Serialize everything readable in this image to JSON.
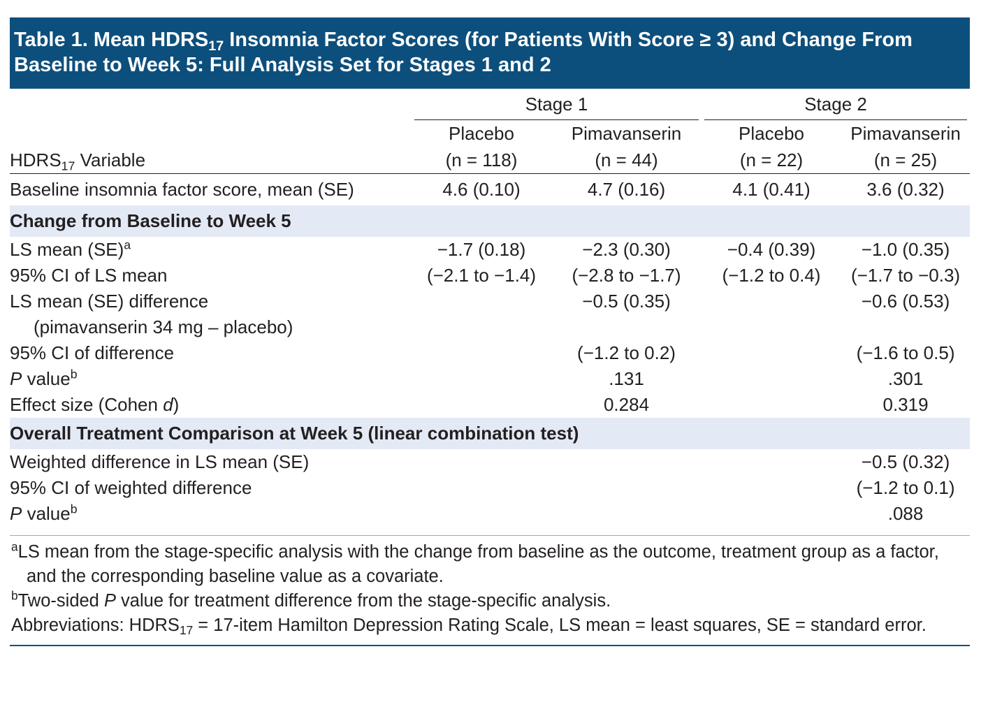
{
  "title": [
    {
      "text": "Table 1. Mean HDRS"
    },
    {
      "text": "17",
      "style": "sub"
    },
    {
      "text": " Insomnia Factor Scores (for Patients With Score ≥ 3) and Change From Baseline to Week 5: Full Analysis Set for Stages 1 and 2"
    }
  ],
  "header": {
    "stages": [
      "Stage 1",
      "Stage 2"
    ],
    "variable": [
      {
        "text": "HDRS"
      },
      {
        "text": "17",
        "style": "sub"
      },
      {
        "text": " Variable"
      }
    ],
    "groups": [
      {
        "name": "Placebo",
        "n": "(n = 118)"
      },
      {
        "name": "Pimavanserin",
        "n": "(n = 44)"
      },
      {
        "name": "Placebo",
        "n": "(n = 22)"
      },
      {
        "name": "Pimavanserin",
        "n": "(n = 25)"
      }
    ]
  },
  "rows": [
    {
      "label": [
        {
          "text": "Baseline insomnia factor score, mean (SE)"
        }
      ],
      "values": [
        "4.6 (0.10)",
        "4.7 (0.16)",
        "4.1 (0.41)",
        "3.6 (0.32)"
      ]
    },
    {
      "section": true,
      "label": [
        {
          "text": "Change from Baseline to Week 5"
        }
      ]
    },
    {
      "label": [
        {
          "text": "LS mean (SE)"
        },
        {
          "text": "a",
          "style": "sup"
        }
      ],
      "values": [
        "−1.7 (0.18)",
        "−2.3 (0.30)",
        "−0.4 (0.39)",
        "−1.0 (0.35)"
      ]
    },
    {
      "label": [
        {
          "text": "95% CI of LS mean"
        }
      ],
      "values": [
        "(−2.1 to −1.4)",
        "(−2.8 to −1.7)",
        "(−1.2 to 0.4)",
        "(−1.7 to −0.3)"
      ]
    },
    {
      "label": [
        {
          "text": "LS mean (SE) difference"
        }
      ],
      "values": [
        null,
        "−0.5 (0.35)",
        null,
        "−0.6 (0.53)"
      ]
    },
    {
      "indent": true,
      "label": [
        {
          "text": "(pimavanserin 34 mg – placebo)"
        }
      ]
    },
    {
      "label": [
        {
          "text": "95% CI of difference"
        }
      ],
      "values": [
        null,
        "(−1.2 to 0.2)",
        null,
        "(−1.6 to 0.5)"
      ]
    },
    {
      "label": [
        {
          "text": "P",
          "style": "italic"
        },
        {
          "text": " value"
        },
        {
          "text": "b",
          "style": "sup"
        }
      ],
      "values": [
        null,
        ".131",
        null,
        ".301"
      ]
    },
    {
      "label": [
        {
          "text": "Effect size (Cohen "
        },
        {
          "text": "d",
          "style": "italic"
        },
        {
          "text": ")"
        }
      ],
      "values": [
        null,
        "0.284",
        null,
        "0.319"
      ]
    },
    {
      "section": true,
      "label": [
        {
          "text": "Overall Treatment Comparison at Week 5 (linear combination test)"
        }
      ]
    },
    {
      "label": [
        {
          "text": "Weighted difference in LS mean (SE)"
        }
      ],
      "values": [
        null,
        null,
        null,
        "−0.5 (0.32)"
      ]
    },
    {
      "label": [
        {
          "text": "95% CI of weighted difference"
        }
      ],
      "values": [
        null,
        null,
        null,
        "(−1.2 to 0.1)"
      ]
    },
    {
      "label": [
        {
          "text": "P",
          "style": "italic"
        },
        {
          "text": " value"
        },
        {
          "text": "b",
          "style": "sup"
        }
      ],
      "values": [
        null,
        null,
        null,
        ".088"
      ]
    }
  ],
  "footnotes": [
    [
      {
        "text": "a",
        "style": "sup"
      },
      {
        "text": "LS mean from the stage-specific analysis with the change from baseline as the outcome, treatment group as a factor, and the corresponding baseline value as a covariate."
      }
    ],
    [
      {
        "text": "b",
        "style": "sup"
      },
      {
        "text": "Two-sided "
      },
      {
        "text": "P",
        "style": "italic"
      },
      {
        "text": " value for treatment difference from the stage-specific analysis."
      }
    ],
    [
      {
        "text": "Abbreviations: HDRS"
      },
      {
        "text": "17",
        "style": "sub"
      },
      {
        "text": " = 17-item Hamilton Depression Rating Scale, LS mean = least squares, SE = standard error."
      }
    ]
  ]
}
